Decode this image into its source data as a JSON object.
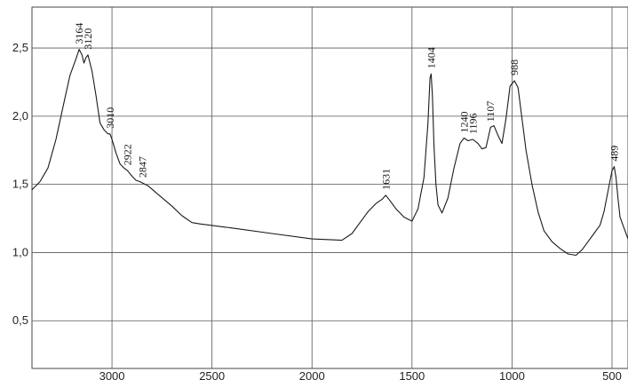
{
  "chart_data": {
    "type": "line",
    "title": "",
    "xlabel": "",
    "ylabel": "",
    "x_reversed": true,
    "xlim": [
      3400,
      420
    ],
    "ylim": [
      0.15,
      2.8
    ],
    "x_ticks": [
      3000,
      2500,
      2000,
      1500,
      1000,
      500
    ],
    "x_tick_labels": [
      "3000",
      "2500",
      "2000",
      "1500",
      "1000",
      "500"
    ],
    "y_ticks": [
      0.5,
      1.0,
      1.5,
      2.0,
      2.5
    ],
    "y_tick_labels": [
      "0,5",
      "1,0",
      "1,5",
      "2,0",
      "2,5"
    ],
    "grid": true,
    "line_color": "#1a1a1a",
    "series": [
      {
        "x": [
          3400,
          3360,
          3320,
          3280,
          3240,
          3210,
          3180,
          3164,
          3150,
          3140,
          3130,
          3120,
          3100,
          3080,
          3060,
          3040,
          3020,
          3010,
          3000,
          2980,
          2960,
          2940,
          2922,
          2900,
          2880,
          2860,
          2847,
          2820,
          2780,
          2740,
          2700,
          2650,
          2600,
          2560,
          2400,
          2200,
          2000,
          1850,
          1800,
          1760,
          1720,
          1680,
          1650,
          1631,
          1610,
          1580,
          1540,
          1500,
          1470,
          1440,
          1420,
          1410,
          1404,
          1398,
          1390,
          1380,
          1370,
          1350,
          1320,
          1290,
          1260,
          1240,
          1220,
          1196,
          1170,
          1150,
          1130,
          1107,
          1090,
          1070,
          1050,
          1030,
          1010,
          988,
          970,
          950,
          930,
          900,
          870,
          840,
          800,
          760,
          720,
          680,
          650,
          620,
          590,
          560,
          540,
          520,
          500,
          489,
          480,
          470,
          460,
          440,
          420
        ],
        "y": [
          1.46,
          1.52,
          1.62,
          1.83,
          2.1,
          2.3,
          2.42,
          2.49,
          2.45,
          2.39,
          2.43,
          2.45,
          2.33,
          2.15,
          1.95,
          1.9,
          1.87,
          1.87,
          1.83,
          1.73,
          1.65,
          1.62,
          1.6,
          1.56,
          1.53,
          1.52,
          1.51,
          1.49,
          1.44,
          1.39,
          1.34,
          1.27,
          1.22,
          1.21,
          1.18,
          1.14,
          1.1,
          1.09,
          1.14,
          1.22,
          1.3,
          1.36,
          1.39,
          1.42,
          1.38,
          1.32,
          1.26,
          1.23,
          1.32,
          1.55,
          1.95,
          2.28,
          2.31,
          2.15,
          1.78,
          1.5,
          1.35,
          1.29,
          1.4,
          1.62,
          1.8,
          1.84,
          1.82,
          1.83,
          1.8,
          1.76,
          1.77,
          1.92,
          1.93,
          1.86,
          1.8,
          1.98,
          2.22,
          2.26,
          2.21,
          1.98,
          1.75,
          1.5,
          1.3,
          1.16,
          1.08,
          1.03,
          0.99,
          0.98,
          1.02,
          1.08,
          1.14,
          1.2,
          1.3,
          1.45,
          1.6,
          1.63,
          1.55,
          1.4,
          1.26,
          1.18,
          1.1
        ]
      }
    ],
    "annotations": [
      {
        "text": "3164",
        "x": 3164,
        "y": 2.49
      },
      {
        "text": "3120",
        "x": 3120,
        "y": 2.45
      },
      {
        "text": "3010",
        "x": 3010,
        "y": 1.87
      },
      {
        "text": "2922",
        "x": 2922,
        "y": 1.6
      },
      {
        "text": "2847",
        "x": 2847,
        "y": 1.51
      },
      {
        "text": "1631",
        "x": 1631,
        "y": 1.42
      },
      {
        "text": "1404",
        "x": 1404,
        "y": 2.31
      },
      {
        "text": "1240",
        "x": 1240,
        "y": 1.84
      },
      {
        "text": "1196",
        "x": 1196,
        "y": 1.83
      },
      {
        "text": "1107",
        "x": 1107,
        "y": 1.92
      },
      {
        "text": "988",
        "x": 988,
        "y": 2.26
      },
      {
        "text": "489",
        "x": 489,
        "y": 1.63
      }
    ]
  }
}
